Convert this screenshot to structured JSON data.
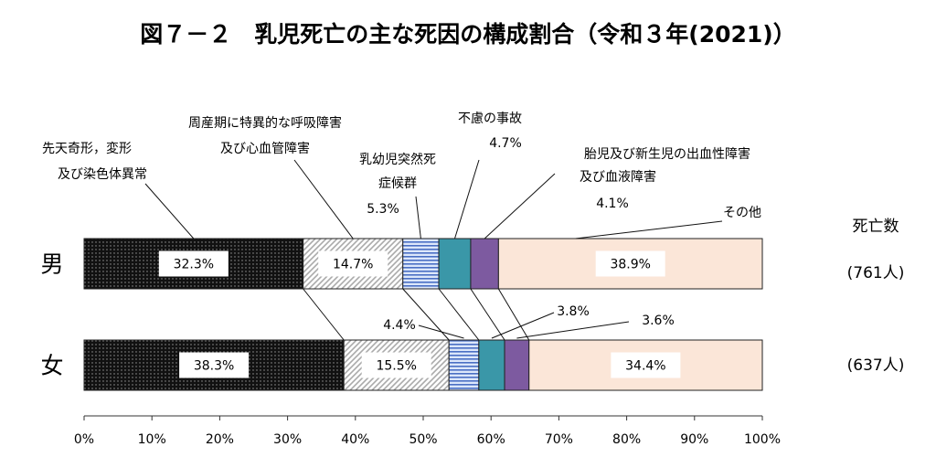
{
  "chart_data": {
    "type": "bar",
    "orientation": "horizontal-stacked-100",
    "title": "図７－２　乳児死亡の主な死因の構成割合（令和３年(2021)）",
    "categories": [
      "男",
      "女"
    ],
    "deaths_header": "死亡数",
    "deaths": [
      "(761人)",
      "(637人)"
    ],
    "xlim": [
      0,
      100
    ],
    "xticks": [
      "0%",
      "10%",
      "20%",
      "30%",
      "40%",
      "50%",
      "60%",
      "70%",
      "80%",
      "90%",
      "100%"
    ],
    "series": [
      {
        "name_lines": [
          "先天奇形，変形",
          "及び染色体異常"
        ],
        "values": [
          32.3,
          38.3
        ],
        "labels": [
          "32.3%",
          "38.3%"
        ],
        "fill": "black-dots"
      },
      {
        "name_lines": [
          "周産期に特異的な呼吸障害",
          "及び心血管障害"
        ],
        "values": [
          14.7,
          15.5
        ],
        "labels": [
          "14.7%",
          "15.5%"
        ],
        "fill": "gray-diagonal"
      },
      {
        "name_lines": [
          "乳幼児突然死",
          "症候群"
        ],
        "values": [
          5.3,
          4.4
        ],
        "labels": [
          "5.3%",
          "4.4%"
        ],
        "fill": "blue-stripes"
      },
      {
        "name_lines": [
          "不慮の事故"
        ],
        "values": [
          4.7,
          3.8
        ],
        "labels": [
          "4.7%",
          "3.8%"
        ],
        "fill": "#3a97a8"
      },
      {
        "name_lines": [
          "胎児及び新生児の出血性障害",
          "及び血液障害"
        ],
        "values": [
          4.1,
          3.6
        ],
        "labels": [
          "4.1%",
          "3.6%"
        ],
        "fill": "#7d5aa0"
      },
      {
        "name_lines": [
          "その他"
        ],
        "values": [
          38.9,
          34.4
        ],
        "labels": [
          "38.9%",
          "34.4%"
        ],
        "fill": "#fbe6d8"
      }
    ]
  }
}
